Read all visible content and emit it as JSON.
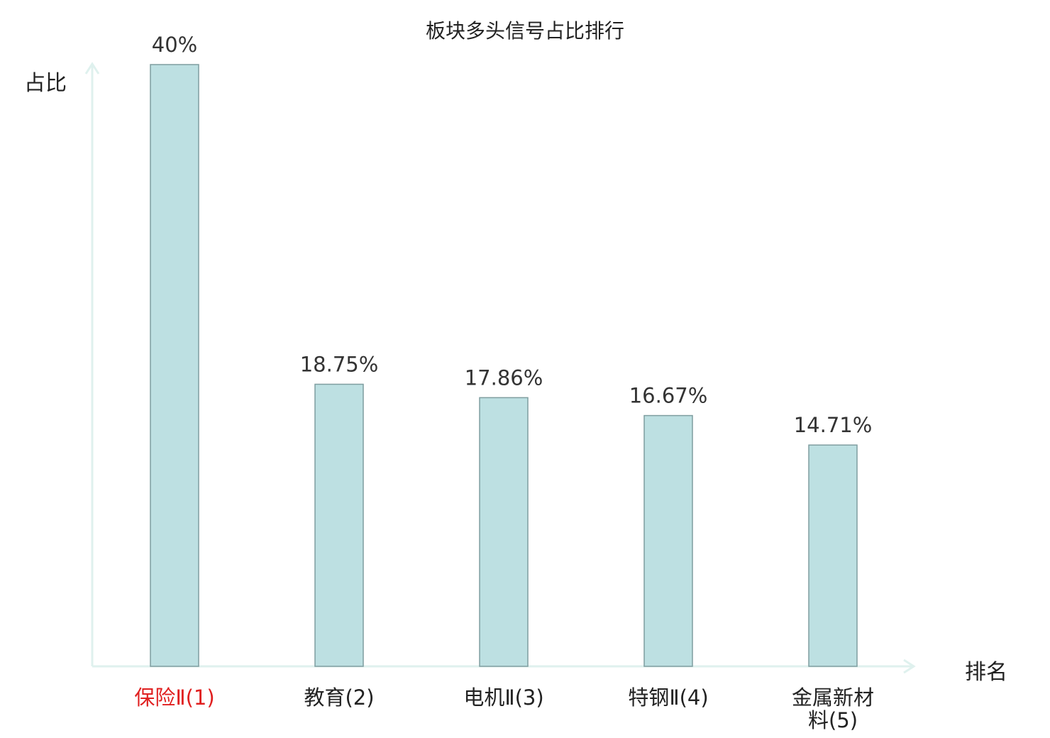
{
  "chart_data": {
    "type": "bar",
    "title": "板块多头信号占比排行",
    "xlabel": "排名",
    "ylabel": "占比",
    "categories": [
      "保险Ⅱ(1)",
      "教育(2)",
      "电机Ⅱ(3)",
      "特钢Ⅱ(4)",
      "金属新材料(5)"
    ],
    "values": [
      40,
      18.75,
      17.86,
      16.67,
      14.71
    ],
    "value_labels": [
      "40%",
      "18.75%",
      "17.86%",
      "16.67%",
      "14.71%"
    ],
    "ylim": [
      0,
      40
    ],
    "grid": false,
    "highlight_category_index": 0,
    "colors": {
      "bar_fill": "#bde0e2",
      "bar_stroke": "#7f9ea0",
      "axis": "#dff1ee",
      "highlight_text": "#e02020"
    }
  }
}
